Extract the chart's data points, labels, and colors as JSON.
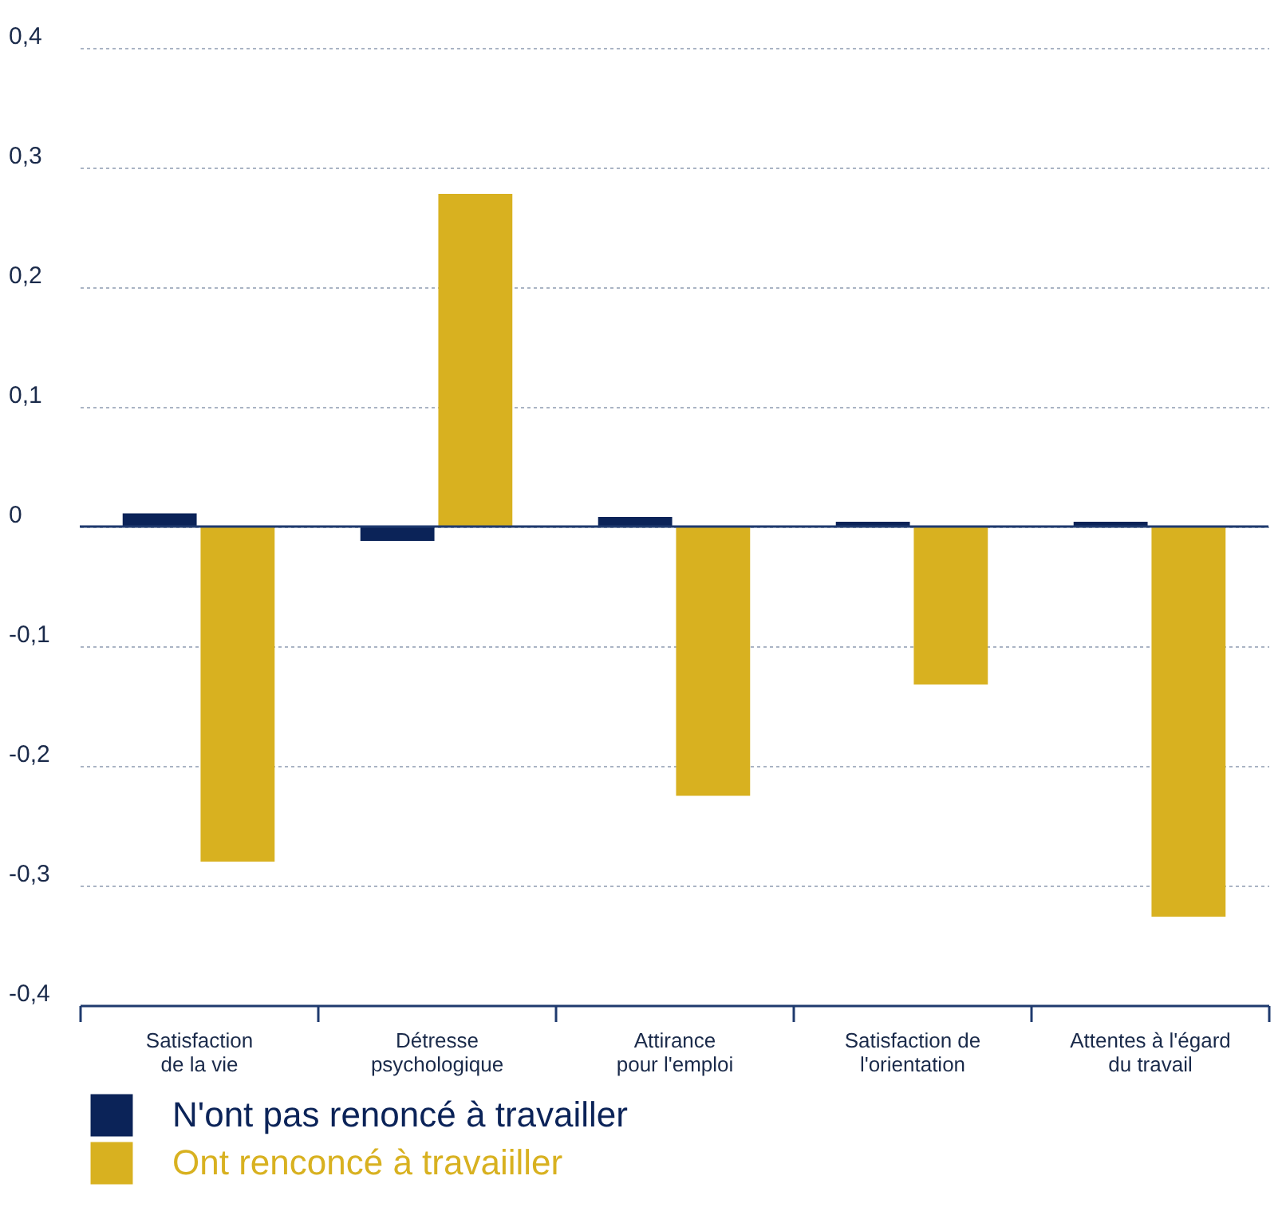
{
  "chart_data": {
    "type": "bar",
    "categories": [
      "Satisfaction de la vie",
      "Détresse psychologique",
      "Attirance pour l'emploi",
      "Satisfaction de l'orientation",
      "Attentes à l'égard du travail"
    ],
    "series": [
      {
        "name": "N'ont pas renoncé à travailler",
        "color": "#0b2358",
        "values": [
          0.011,
          -0.012,
          0.008,
          0.004,
          0.004
        ]
      },
      {
        "name": "Ont renconcé à travaiiller",
        "color": "#d8b120",
        "values": [
          -0.28,
          0.278,
          -0.225,
          -0.132,
          -0.326
        ]
      }
    ],
    "ylim": [
      -0.4,
      0.4
    ],
    "yticks": [
      {
        "value": -0.4,
        "label": "-0,4"
      },
      {
        "value": -0.3,
        "label": "-0,3"
      },
      {
        "value": -0.2,
        "label": "-0,2"
      },
      {
        "value": -0.1,
        "label": "-0,1"
      },
      {
        "value": 0,
        "label": "0"
      },
      {
        "value": 0.1,
        "label": "0,1"
      },
      {
        "value": 0.2,
        "label": "0,2"
      },
      {
        "value": 0.3,
        "label": "0,3"
      },
      {
        "value": 0.4,
        "label": "0,4"
      }
    ],
    "ref_lines": [
      {
        "axis": "y",
        "value": 0,
        "color": "#1f3a6e"
      }
    ],
    "grid": "y",
    "legend": "bottom left"
  }
}
